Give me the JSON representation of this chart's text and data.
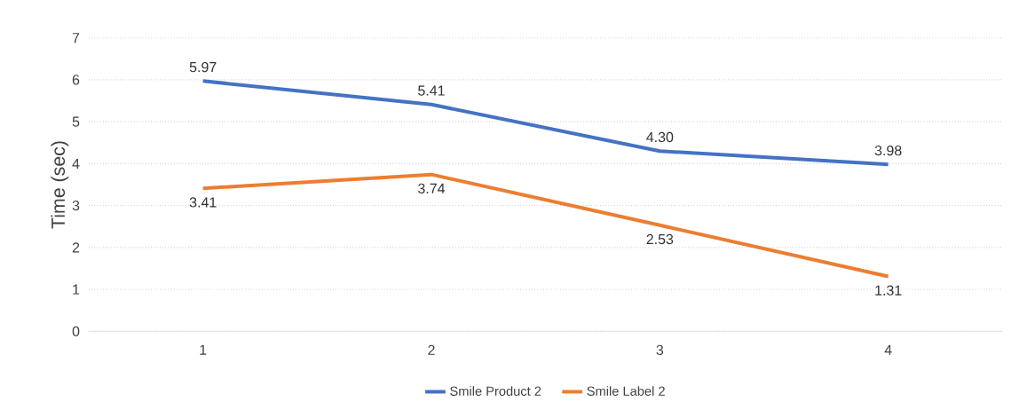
{
  "chart_data": {
    "type": "line",
    "ylabel": "Time (sec)",
    "categories": [
      "1",
      "2",
      "3",
      "4"
    ],
    "series": [
      {
        "name": "Smile Product 2",
        "color": "#4472c4",
        "values": [
          5.97,
          5.41,
          4.3,
          3.98
        ],
        "value_labels": [
          "5.97",
          "5.41",
          "4.30",
          "3.98"
        ]
      },
      {
        "name": "Smile Label 2",
        "color": "#ed7d31",
        "values": [
          3.41,
          3.74,
          2.53,
          1.31
        ],
        "value_labels": [
          "3.41",
          "3.74",
          "2.53",
          "1.31"
        ]
      }
    ],
    "ylim": [
      0,
      7
    ],
    "yticks": [
      0,
      1,
      2,
      3,
      4,
      5,
      6,
      7
    ],
    "grid": "y",
    "legend": "bottom",
    "marker": "none",
    "line_style": "solid"
  }
}
